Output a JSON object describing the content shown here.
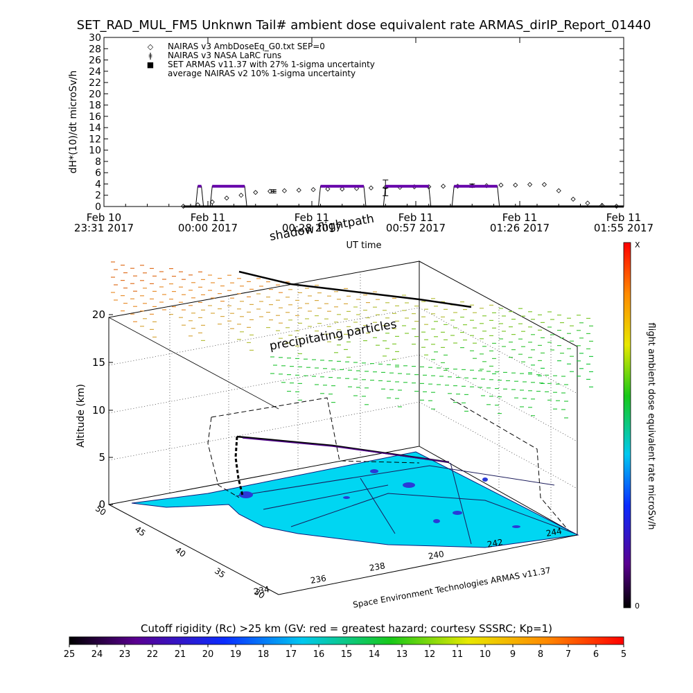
{
  "title": "SET_RAD_MUL_FM5 Unknwn Tail#  ambient dose equivalent rate ARMAS_dirIP_Report_01440",
  "chart_data": [
    {
      "type": "scatter",
      "ylabel": "dH*(10)/dt microSv/h",
      "xlabel": "UT time",
      "ylim": [
        0,
        30
      ],
      "yticks": [
        "0",
        "2",
        "4",
        "6",
        "8",
        "10",
        "12",
        "14",
        "16",
        "18",
        "20",
        "22",
        "24",
        "26",
        "28",
        "30"
      ],
      "xticks": [
        {
          "line1": "Feb 10",
          "line2": "23:31 2017"
        },
        {
          "line1": "Feb 11",
          "line2": "00:00 2017"
        },
        {
          "line1": "Feb 11",
          "line2": "00:28 2017"
        },
        {
          "line1": "Feb 11",
          "line2": "00:57 2017"
        },
        {
          "line1": "Feb 11",
          "line2": "01:26 2017"
        },
        {
          "line1": "Feb 11",
          "line2": "01:55 2017"
        }
      ],
      "xrange_minutes": [
        0,
        144
      ],
      "legend": [
        {
          "symbol": "◇",
          "label": "NAIRAS v3 AmbDoseEq_G0.txt SEP=0"
        },
        {
          "symbol": "ǂ",
          "label": "NAIRAS v3 NASA LaRC runs"
        },
        {
          "symbol": "■",
          "label": "SET ARMAS v11.37 with 27% 1-sigma uncertainty",
          "color": "#2233cc"
        },
        {
          "symbol": "",
          "label": "average NAIRAS v2 10% 1-sigma uncertainty"
        }
      ],
      "series": [
        {
          "name": "NAIRAS v3 AmbDoseEq_G0.txt SEP=0",
          "x": [
            22,
            26,
            30,
            34,
            38,
            42,
            46,
            50,
            54,
            58,
            62,
            66,
            70,
            74,
            78,
            82,
            86,
            90,
            94,
            98,
            102,
            106,
            110,
            114,
            118,
            122,
            126,
            130,
            134,
            138,
            142
          ],
          "y": [
            0.05,
            0.3,
            0.8,
            1.5,
            2.0,
            2.5,
            2.7,
            2.8,
            2.9,
            3.0,
            3.1,
            3.1,
            3.2,
            3.3,
            3.4,
            3.4,
            3.5,
            3.5,
            3.6,
            3.6,
            3.7,
            3.7,
            3.8,
            3.8,
            3.9,
            3.9,
            2.8,
            1.3,
            0.6,
            0.2,
            0.05
          ]
        },
        {
          "name": "NAIRAS v3 NASA LaRC runs",
          "x": [
            47,
            78,
            102
          ],
          "y": [
            2.7,
            3.3,
            3.7
          ],
          "err": [
            0.3,
            1.4,
            0.3
          ]
        },
        {
          "name": "SET ARMAS v11.37 with 27% 1-sigma uncertainty",
          "color": "#6600aa",
          "segments": [
            [
              26,
              27,
              3.6
            ],
            [
              30,
              39,
              3.6
            ],
            [
              60,
              72,
              3.6
            ],
            [
              78,
              90,
              3.6
            ],
            [
              97,
              109,
              3.6
            ]
          ],
          "baseline": [
            [
              22,
              144,
              0.0
            ]
          ]
        }
      ]
    },
    {
      "type": "scatter",
      "zlabel": "Altitude (km)",
      "zticks": [
        "0",
        "5",
        "10",
        "15",
        "20"
      ],
      "lat_ticks": [
        "30",
        "35",
        "40",
        "45",
        "50"
      ],
      "lon_ticks": [
        "234",
        "236",
        "238",
        "240",
        "242",
        "244"
      ],
      "annotations": [
        "shadow flightpath",
        "precipitating particles"
      ],
      "footer": "Space Environment Technologies ARMAS v11.37",
      "colorbar_label": "flight ambient dose equivalent rate microSv/h",
      "colorbar_top": "X",
      "colorbar_bottom": "0"
    },
    {
      "type": "heatmap",
      "title": "Cutoff rigidity (Rc) >25 km (GV: red = greatest hazard; courtesy SSSRC; Kp=1)",
      "ticks": [
        "25",
        "24",
        "23",
        "22",
        "21",
        "20",
        "19",
        "18",
        "17",
        "16",
        "15",
        "14",
        "13",
        "12",
        "11",
        "10",
        "9",
        "8",
        "7",
        "6",
        "5"
      ]
    }
  ]
}
